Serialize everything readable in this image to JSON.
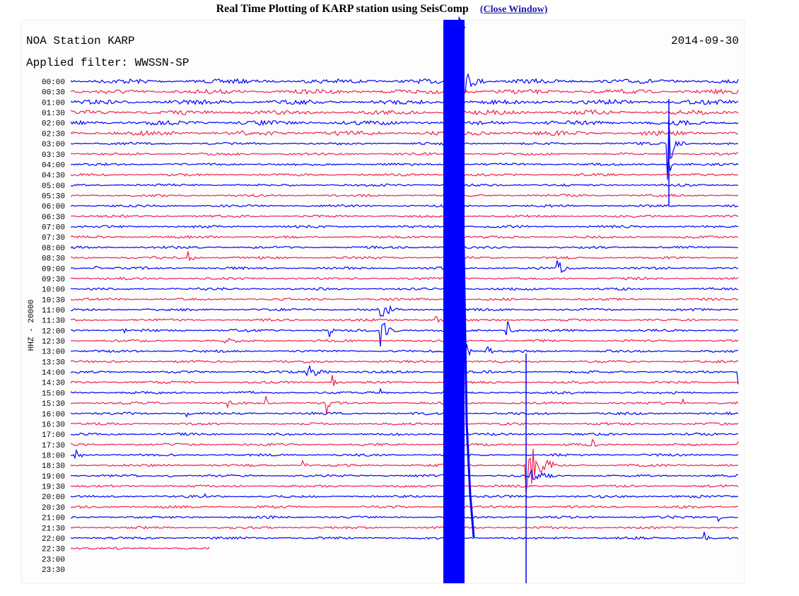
{
  "header": {
    "title": "Real Time Plotting of KARP station using SeisComp",
    "link": "(Close Window)"
  },
  "plot": {
    "station": "NOA Station KARP",
    "date": "2014-09-30",
    "filter": "Applied filter: WWSSN-SP",
    "channel": "HHZ - 20000",
    "times": [
      "00:00",
      "00:30",
      "01:00",
      "01:30",
      "02:00",
      "02:30",
      "03:00",
      "03:30",
      "04:00",
      "04:30",
      "05:00",
      "05:30",
      "06:00",
      "06:30",
      "07:00",
      "07:30",
      "08:00",
      "08:30",
      "09:00",
      "09:30",
      "10:00",
      "10:30",
      "11:00",
      "11:30",
      "12:00",
      "12:30",
      "13:00",
      "13:30",
      "14:00",
      "14:30",
      "15:00",
      "15:30",
      "16:00",
      "16:30",
      "17:00",
      "17:30",
      "18:00",
      "18:30",
      "19:00",
      "19:30",
      "20:00",
      "20:30",
      "21:00",
      "21:30",
      "22:00",
      "22:30",
      "23:00",
      "23:30"
    ]
  }
}
